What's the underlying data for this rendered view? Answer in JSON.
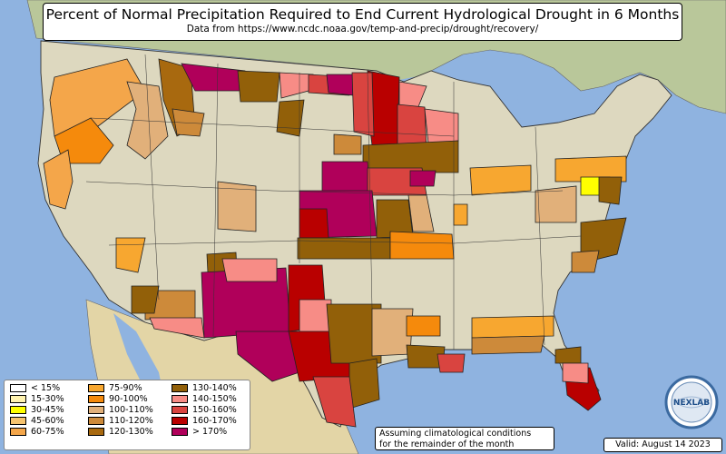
{
  "title": "Percent of Normal Precipitation Required to End Current Hydrological Drought in 6 Months",
  "subtitle": "Data from https://www.ncdc.noaa.gov/temp-and-precip/drought/recovery/",
  "legend": [
    {
      "label": "< 15%",
      "color": "#ffffff"
    },
    {
      "label": "15-30%",
      "color": "#fff3b0"
    },
    {
      "label": "30-45%",
      "color": "#ffff00"
    },
    {
      "label": "45-60%",
      "color": "#f6c36e"
    },
    {
      "label": "60-75%",
      "color": "#f4a64a"
    },
    {
      "label": "75-90%",
      "color": "#f7a730"
    },
    {
      "label": "90-100%",
      "color": "#f58a0c"
    },
    {
      "label": "100-110%",
      "color": "#e1b07a"
    },
    {
      "label": "110-120%",
      "color": "#cd8a3a"
    },
    {
      "label": "120-130%",
      "color": "#a8690f"
    },
    {
      "label": "130-140%",
      "color": "#926009"
    },
    {
      "label": "140-150%",
      "color": "#f78c86"
    },
    {
      "label": "150-160%",
      "color": "#d94440"
    },
    {
      "label": "160-170%",
      "color": "#b90000"
    },
    {
      "label": "> 170%",
      "color": "#b0005a"
    }
  ],
  "note": [
    "Assuming climatological conditions",
    "for the remainder of the month"
  ],
  "valid": "Valid: August 14 2023",
  "logo_text": "NEXLAB",
  "colors": {
    "ocean": "#8fb3e0",
    "land": "#ddd8bf",
    "canada": "#b9c79a",
    "mexico": "#e3d5a6"
  },
  "map_regions": [
    {
      "name": "Pacific Northwest",
      "category": "60-75%"
    },
    {
      "name": "Northern California",
      "category": "90-100%"
    },
    {
      "name": "Western Montana",
      "category": "120-130%"
    },
    {
      "name": "Northern Montana",
      "category": "> 170%"
    },
    {
      "name": "Eastern Montana",
      "category": "130-140%"
    },
    {
      "name": "North Dakota",
      "category": "150-160%"
    },
    {
      "name": "Minnesota",
      "category": "160-170%"
    },
    {
      "name": "Wisconsin",
      "category": "150-160%"
    },
    {
      "name": "Iowa and Missouri",
      "category": "130-140%"
    },
    {
      "name": "Nebraska and Kansas",
      "category": "> 170%"
    },
    {
      "name": "Oklahoma",
      "category": "130-140%"
    },
    {
      "name": "New Mexico",
      "category": "> 170%"
    },
    {
      "name": "West Texas",
      "category": "> 170%"
    },
    {
      "name": "Central Texas",
      "category": "160-170%"
    },
    {
      "name": "East Texas",
      "category": "130-140%"
    },
    {
      "name": "Louisiana",
      "category": "120-130%"
    },
    {
      "name": "Gulf Coast",
      "category": "90-100%"
    },
    {
      "name": "Carolinas",
      "category": "120-130%"
    },
    {
      "name": "Ohio Valley",
      "category": "75-90%"
    },
    {
      "name": "Maryland",
      "category": "30-45%"
    },
    {
      "name": "Florida",
      "category": "160-170%"
    },
    {
      "name": "Arizona",
      "category": "120-130%"
    }
  ]
}
